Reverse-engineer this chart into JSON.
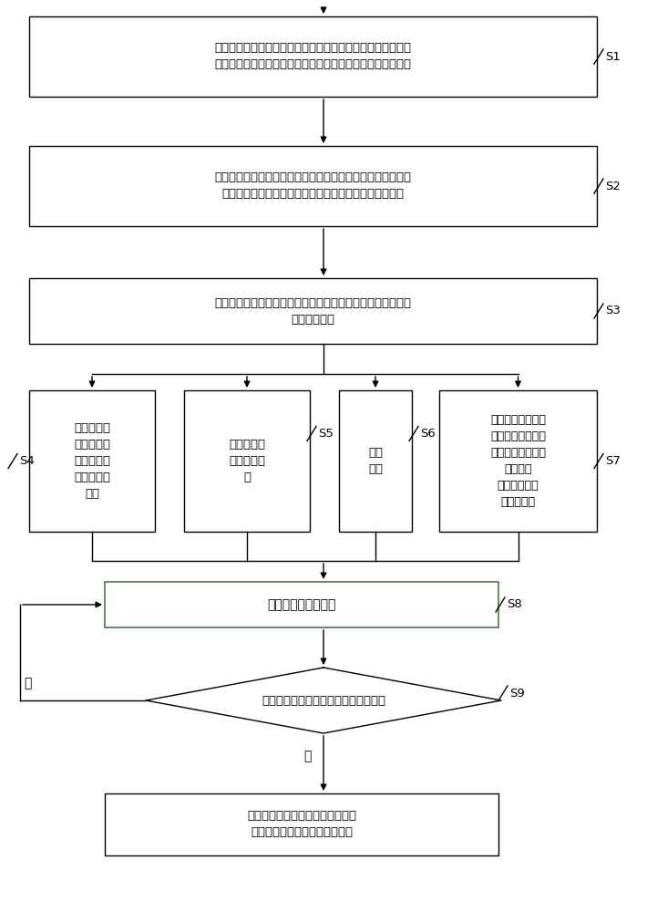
{
  "bg_color": "#ffffff",
  "s1_text": "实时监测路口各个行驶方向范围内的积水高度、路口的能见度\n、路面是否湿滑、路口各个行驶方向的停止线是否被积雪覆盖",
  "s2_text": "连续平面精准跟踪路口每个方向上的机动车，实时获取每个方\n向的机动车的数量、每一台机动车的瞬时速度和精准位置",
  "s3_text": "根据不同方向机动车遇红灯的停车等待次数的关系，对路口信\n号灯进行控制",
  "s4_text": "某一行驶方\n向范围有积\n水且积水高\n度超过设定\n阈值",
  "s5_text": "路口能见度\n低于设定阈\n值",
  "s6_text": "路面\n湿滑",
  "s7_text": "停止线被积雪覆盖\n，且距离当前放行\n方向的停止线上游\n设定阈值\n距离的范围内\n没有机动车",
  "s8_text": "改变信号灯放行方向",
  "s9_text": "已进入路口内的车辆是否全部通过路口",
  "s10_text": "延长该路口的信号灯的全红时间，\n直到路口内的车辆全部通过路口",
  "yes_label": "是",
  "no_label": "否",
  "s1_label": "S1",
  "s2_label": "S2",
  "s3_label": "S3",
  "s4_label": "S4",
  "s5_label": "S5",
  "s6_label": "S6",
  "s7_label": "S7",
  "s8_label": "S8",
  "s9_label": "S9"
}
